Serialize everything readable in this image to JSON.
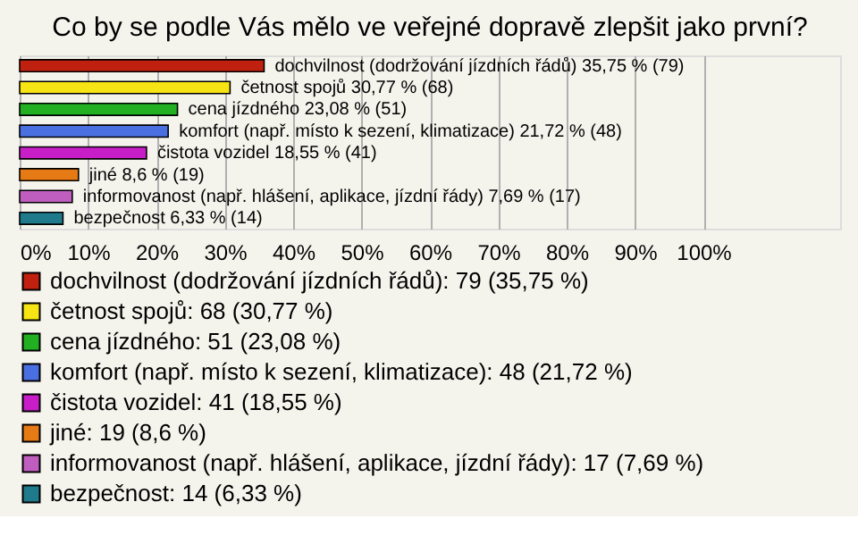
{
  "chart_data": {
    "type": "bar",
    "orientation": "horizontal",
    "stacked": true,
    "title": "Co by se podle Vás mělo ve veřejné dopravě zlepšit jako první?",
    "categories": [
      null,
      null,
      null,
      null,
      null,
      null,
      null,
      null
    ],
    "series": [
      {
        "name": "dochvilnost (dodržování jízdních řádů): 79 (35,75 %)",
        "color": "#c0200f",
        "values": [
          35.75,
          null,
          null,
          null,
          null,
          null,
          null,
          null
        ],
        "value_labels": [
          "dochvilnost (dodržování jízdních řádů) 35,75 % (79)",
          null,
          null,
          null,
          null,
          null,
          null,
          null
        ]
      },
      {
        "name": "četnost spojů: 68 (30,77 %)",
        "color": "#f7e414",
        "values": [
          null,
          30.77,
          null,
          null,
          null,
          null,
          null,
          null
        ],
        "value_labels": [
          null,
          "četnost spojů 30,77 % (68)",
          null,
          null,
          null,
          null,
          null,
          null
        ]
      },
      {
        "name": "cena jízdného: 51 (23,08 %)",
        "color": "#22b022",
        "values": [
          null,
          null,
          23.08,
          null,
          null,
          null,
          null,
          null
        ],
        "value_labels": [
          null,
          null,
          "cena jízdného 23,08 % (51)",
          null,
          null,
          null,
          null,
          null
        ]
      },
      {
        "name": "komfort (např. místo k sezení, klimatizace): 48 (21,72 %)",
        "color": "#4a6fe0",
        "values": [
          null,
          null,
          null,
          21.72,
          null,
          null,
          null,
          null
        ],
        "value_labels": [
          null,
          null,
          null,
          "komfort (např. místo k sezení, klimatizace) 21,72 % (48)",
          null,
          null,
          null,
          null
        ]
      },
      {
        "name": "čistota vozidel: 41 (18,55 %)",
        "color": "#c81ec8",
        "values": [
          null,
          null,
          null,
          null,
          18.55,
          null,
          null,
          null
        ],
        "value_labels": [
          null,
          null,
          null,
          null,
          "čistota vozidel 18,55 % (41)",
          null,
          null,
          null
        ]
      },
      {
        "name": "jiné: 19 (8,6 %)",
        "color": "#e67a14",
        "values": [
          null,
          null,
          null,
          null,
          null,
          8.6,
          null,
          null
        ],
        "value_labels": [
          null,
          null,
          null,
          null,
          null,
          "jiné 8,6 % (19)",
          null,
          null
        ]
      },
      {
        "name": "informovanost (např. hlášení, aplikace, jízdní řády): 17 (7,69 %)",
        "color": "#c05ec0",
        "values": [
          null,
          null,
          null,
          null,
          null,
          null,
          7.69,
          null
        ],
        "value_labels": [
          null,
          null,
          null,
          null,
          null,
          null,
          "informovanost (např. hlášení, aplikace, jízdní řády) 7,69 % (17)",
          null
        ]
      },
      {
        "name": "bezpečnost: 14 (6,33 %)",
        "color": "#1f7a8c",
        "values": [
          null,
          null,
          null,
          null,
          null,
          null,
          null,
          6.33
        ],
        "value_labels": [
          null,
          null,
          null,
          null,
          null,
          null,
          null,
          "bezpečnost 6,33 % (14)"
        ]
      }
    ],
    "xlim": [
      0,
      120
    ],
    "xticks": [
      {
        "value": 0,
        "label": "0%"
      },
      {
        "value": 10,
        "label": "10%"
      },
      {
        "value": 20,
        "label": "20%"
      },
      {
        "value": 30,
        "label": "30%"
      },
      {
        "value": 40,
        "label": "40%"
      },
      {
        "value": 50,
        "label": "50%"
      },
      {
        "value": 60,
        "label": "60%"
      },
      {
        "value": 70,
        "label": "70%"
      },
      {
        "value": 80,
        "label": "80%"
      },
      {
        "value": 90,
        "label": "90%"
      },
      {
        "value": 100,
        "label": "100%"
      }
    ],
    "grid": "x",
    "legend": "bottom",
    "tick_labels": "x"
  }
}
